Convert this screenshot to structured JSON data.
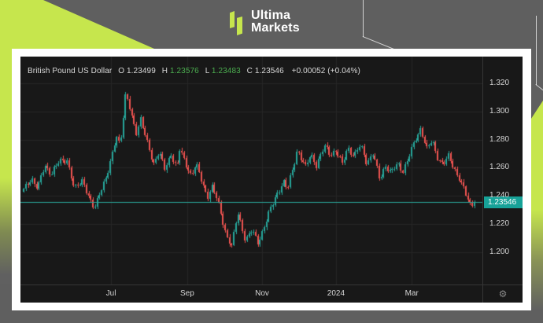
{
  "header": {
    "logo_line1": "Ultima",
    "logo_line2": "Markets"
  },
  "chart": {
    "legend": {
      "symbol": "British Pound US Dollar",
      "o_label": "O",
      "o_value": "1.23499",
      "h_label": "H",
      "h_value": "1.23576",
      "l_label": "L",
      "l_value": "1.23483",
      "c_label": "C",
      "c_value": "1.23546",
      "change": "+0.00052 (+0.04%)"
    },
    "price_axis": {
      "current_price_label": "1.23546"
    },
    "icons": {
      "settings": "⚙"
    }
  },
  "chart_data": {
    "type": "candlestick",
    "title": "British Pound US Dollar",
    "ohlc_readout": {
      "open": 1.23499,
      "high": 1.23576,
      "low": 1.23483,
      "close": 1.23546,
      "change_abs": 0.00052,
      "change_pct": 0.04
    },
    "current_price": 1.23546,
    "ylim": [
      1.177,
      1.339
    ],
    "y_ticks": [
      {
        "label": "1.320",
        "value": 1.32
      },
      {
        "label": "1.300",
        "value": 1.3
      },
      {
        "label": "1.280",
        "value": 1.28
      },
      {
        "label": "1.260",
        "value": 1.26
      },
      {
        "label": "1.240",
        "value": 1.24
      },
      {
        "label": "1.220",
        "value": 1.22
      },
      {
        "label": "1.200",
        "value": 1.2
      }
    ],
    "x_ticks": [
      {
        "label": "Jul",
        "f": 0.196
      },
      {
        "label": "Sep",
        "f": 0.361
      },
      {
        "label": "Nov",
        "f": 0.523
      },
      {
        "label": "2024",
        "f": 0.683
      },
      {
        "label": "Mar",
        "f": 0.847
      }
    ],
    "n_candles": 209,
    "price_path_anchors": [
      [
        0.0,
        1.244
      ],
      [
        0.017,
        1.253
      ],
      [
        0.031,
        1.245
      ],
      [
        0.047,
        1.262
      ],
      [
        0.061,
        1.256
      ],
      [
        0.08,
        1.2645
      ],
      [
        0.096,
        1.266
      ],
      [
        0.113,
        1.244
      ],
      [
        0.131,
        1.252
      ],
      [
        0.148,
        1.236
      ],
      [
        0.157,
        1.23
      ],
      [
        0.17,
        1.244
      ],
      [
        0.183,
        1.253
      ],
      [
        0.192,
        1.262
      ],
      [
        0.206,
        1.283
      ],
      [
        0.214,
        1.277
      ],
      [
        0.227,
        1.313
      ],
      [
        0.24,
        1.296
      ],
      [
        0.251,
        1.285
      ],
      [
        0.259,
        1.2955
      ],
      [
        0.275,
        1.276
      ],
      [
        0.288,
        1.263
      ],
      [
        0.3,
        1.272
      ],
      [
        0.313,
        1.258
      ],
      [
        0.327,
        1.27
      ],
      [
        0.34,
        1.26
      ],
      [
        0.346,
        1.273
      ],
      [
        0.36,
        1.262
      ],
      [
        0.372,
        1.255
      ],
      [
        0.382,
        1.263
      ],
      [
        0.398,
        1.247
      ],
      [
        0.408,
        1.24
      ],
      [
        0.419,
        1.247
      ],
      [
        0.433,
        1.233
      ],
      [
        0.449,
        1.213
      ],
      [
        0.462,
        1.204
      ],
      [
        0.475,
        1.228
      ],
      [
        0.492,
        1.209
      ],
      [
        0.506,
        1.215
      ],
      [
        0.52,
        1.207
      ],
      [
        0.541,
        1.225
      ],
      [
        0.562,
        1.242
      ],
      [
        0.576,
        1.25
      ],
      [
        0.585,
        1.244
      ],
      [
        0.607,
        1.273
      ],
      [
        0.625,
        1.26
      ],
      [
        0.637,
        1.27
      ],
      [
        0.649,
        1.262
      ],
      [
        0.668,
        1.275
      ],
      [
        0.681,
        1.27
      ],
      [
        0.693,
        1.272
      ],
      [
        0.707,
        1.262
      ],
      [
        0.719,
        1.275
      ],
      [
        0.733,
        1.268
      ],
      [
        0.747,
        1.276
      ],
      [
        0.761,
        1.264
      ],
      [
        0.775,
        1.27
      ],
      [
        0.789,
        1.252
      ],
      [
        0.803,
        1.262
      ],
      [
        0.815,
        1.256
      ],
      [
        0.829,
        1.263
      ],
      [
        0.841,
        1.258
      ],
      [
        0.855,
        1.268
      ],
      [
        0.869,
        1.28
      ],
      [
        0.881,
        1.2885
      ],
      [
        0.894,
        1.273
      ],
      [
        0.906,
        1.279
      ],
      [
        0.918,
        1.268
      ],
      [
        0.93,
        1.262
      ],
      [
        0.942,
        1.268
      ],
      [
        0.955,
        1.26
      ],
      [
        0.967,
        1.252
      ],
      [
        0.979,
        1.242
      ],
      [
        0.99,
        1.234
      ],
      [
        1.0,
        1.23546
      ]
    ],
    "colors": {
      "up": "#26a69a",
      "down": "#ef5350",
      "price_line": "#2aa79b",
      "price_badge_bg": "#17a298",
      "grid": "#262626",
      "bg": "#181818",
      "brand_green": "#c6e64d",
      "frame_gray": "#5f5f5f"
    },
    "legend_position": "top-left",
    "grid": true
  }
}
